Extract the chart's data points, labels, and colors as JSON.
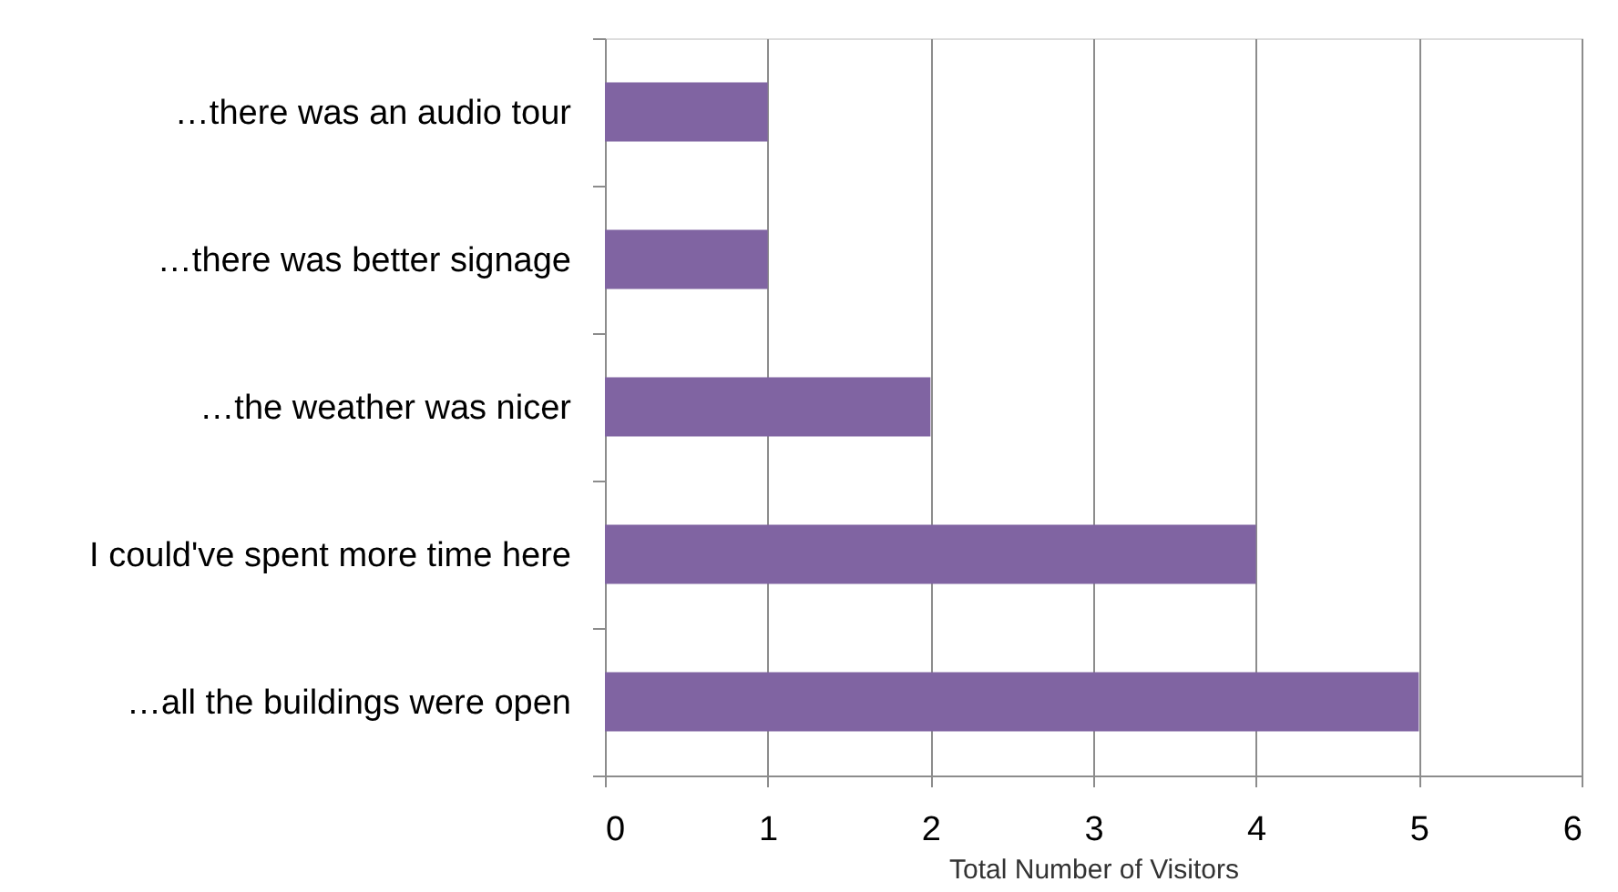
{
  "chart_data": {
    "type": "bar",
    "orientation": "horizontal",
    "categories": [
      "…there was an audio tour",
      "…there was better signage",
      "…the weather was nicer",
      "I could've spent more time here",
      "…all the buildings were open"
    ],
    "values": [
      1,
      1,
      2,
      4,
      5
    ],
    "color": "#8064a2",
    "xlabel": "Total Number of Visitors",
    "xlim": [
      0,
      6
    ],
    "xticks": [
      0,
      1,
      2,
      3,
      4,
      5,
      6
    ],
    "grid": "x"
  }
}
